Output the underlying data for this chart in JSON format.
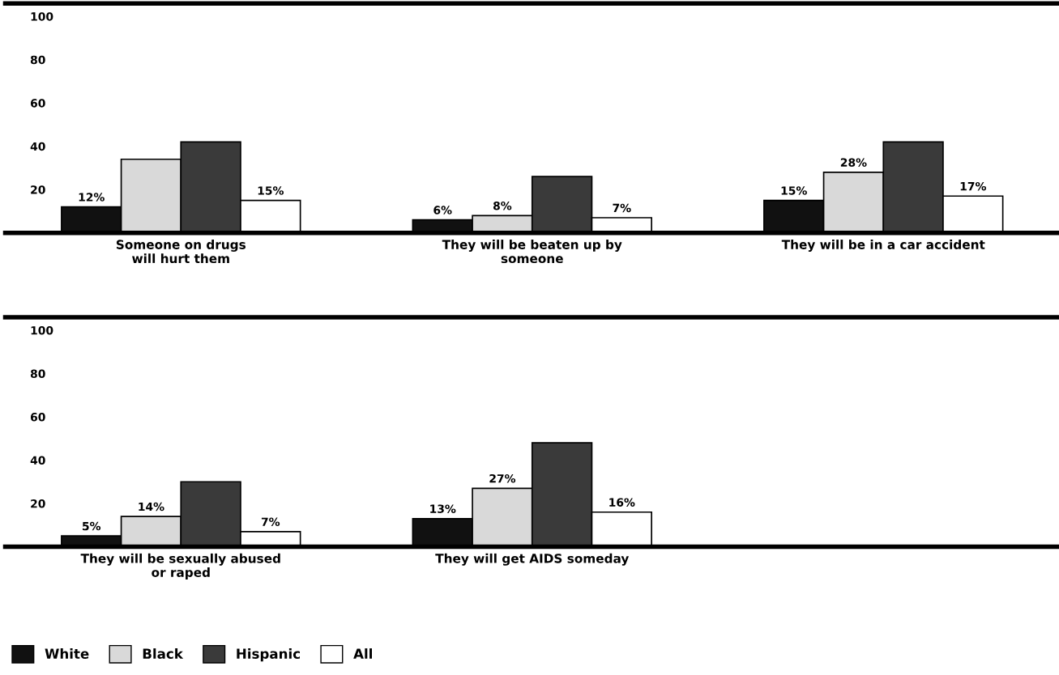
{
  "chart_data": [
    {
      "type": "bar",
      "categories": [
        "Someone on drugs\nwill hurt them",
        "They will be beaten up by\nsomeone",
        "They will be in a car accident"
      ],
      "ylim": [
        0,
        106
      ],
      "yticks": [
        20,
        40,
        60,
        80,
        100
      ],
      "grid": false,
      "legend": false,
      "series": [
        {
          "color": "#111111",
          "values": [
            12,
            6,
            15
          ],
          "value_labels": [
            "12%",
            "6%",
            "15%"
          ]
        },
        {
          "color": "#d9d9d9",
          "values": [
            34,
            8,
            28
          ],
          "value_labels": [
            null,
            "8%",
            "28%"
          ]
        },
        {
          "color": "#3a3a3a",
          "values": [
            42,
            26,
            42
          ],
          "value_labels": [
            null,
            null,
            null
          ]
        },
        {
          "color": "#ffffff",
          "values": [
            15,
            7,
            17
          ],
          "value_labels": [
            "15%",
            "7%",
            "17%"
          ]
        }
      ]
    },
    {
      "type": "bar",
      "categories": [
        "They will be sexually abused\nor raped",
        "They will get AIDS someday"
      ],
      "ylim": [
        0,
        106
      ],
      "yticks": [
        20,
        40,
        60,
        80,
        100
      ],
      "grid": false,
      "legend": "bottom left",
      "series": [
        {
          "name": "White",
          "color": "#111111",
          "values": [
            5,
            13
          ],
          "value_labels": [
            "5%",
            "13%"
          ]
        },
        {
          "name": "Black",
          "color": "#d9d9d9",
          "values": [
            14,
            27
          ],
          "value_labels": [
            "14%",
            "27%"
          ]
        },
        {
          "name": "Hispanic",
          "color": "#3a3a3a",
          "values": [
            30,
            48
          ],
          "value_labels": [
            null,
            null
          ]
        },
        {
          "name": "All",
          "color": "#ffffff",
          "values": [
            7,
            16
          ],
          "value_labels": [
            "7%",
            "16%"
          ]
        }
      ]
    }
  ]
}
